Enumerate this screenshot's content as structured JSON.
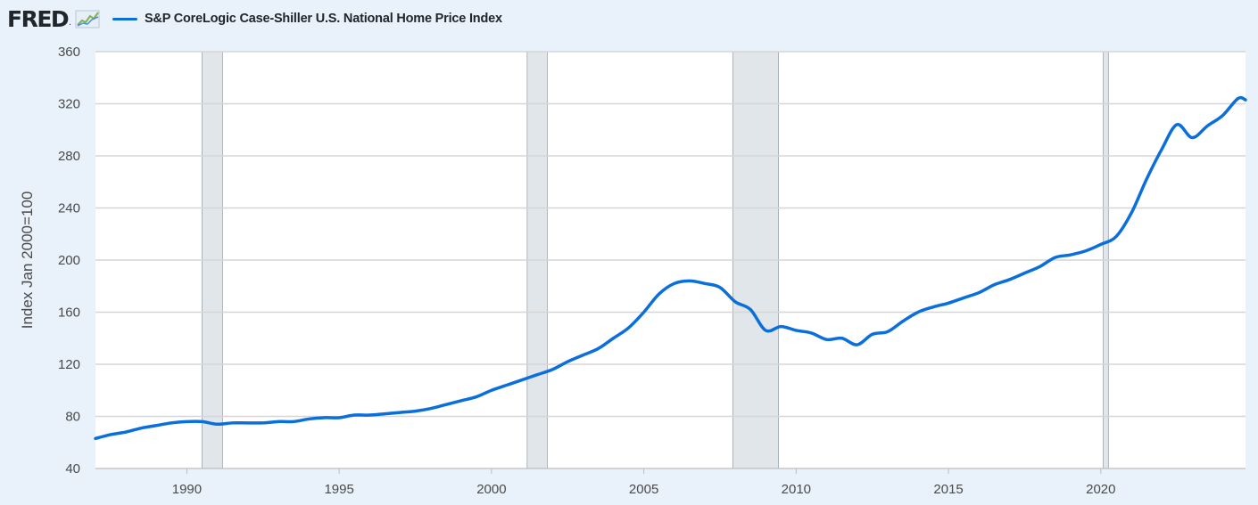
{
  "header": {
    "logo_text": "FRED",
    "logo_mark": ".",
    "icon": "line-graph-icon"
  },
  "colors": {
    "series": "#0a6fdb",
    "recession": "#e1e6eb",
    "grid": "#d6d6d6",
    "background": "#e9f2fa",
    "plot_background": "#ffffff"
  },
  "chart_data": {
    "type": "line",
    "title": "",
    "xlabel": "",
    "ylabel": "Index Jan 2000=100",
    "xlim": [
      1987.0,
      2024.75
    ],
    "ylim": [
      40,
      360
    ],
    "yticks": [
      40,
      80,
      120,
      160,
      200,
      240,
      280,
      320,
      360
    ],
    "xticks": [
      1990,
      1995,
      2000,
      2005,
      2010,
      2015,
      2020
    ],
    "grid": true,
    "legend": "top-left",
    "recessions": [
      [
        1990.5,
        1991.17
      ],
      [
        2001.17,
        2001.83
      ],
      [
        2007.92,
        2009.42
      ],
      [
        2020.08,
        2020.25
      ]
    ],
    "series": [
      {
        "name": "S&P CoreLogic Case-Shiller U.S. National Home Price Index",
        "x": [
          1987.0,
          1987.5,
          1988.0,
          1988.5,
          1989.0,
          1989.5,
          1990.0,
          1990.5,
          1991.0,
          1991.5,
          1992.0,
          1992.5,
          1993.0,
          1993.5,
          1994.0,
          1994.5,
          1995.0,
          1995.5,
          1996.0,
          1996.5,
          1997.0,
          1997.5,
          1998.0,
          1998.5,
          1999.0,
          1999.5,
          2000.0,
          2000.5,
          2001.0,
          2001.5,
          2002.0,
          2002.5,
          2003.0,
          2003.5,
          2004.0,
          2004.5,
          2005.0,
          2005.5,
          2006.0,
          2006.5,
          2007.0,
          2007.5,
          2008.0,
          2008.5,
          2009.0,
          2009.5,
          2010.0,
          2010.5,
          2011.0,
          2011.5,
          2012.0,
          2012.5,
          2013.0,
          2013.5,
          2014.0,
          2014.5,
          2015.0,
          2015.5,
          2016.0,
          2016.5,
          2017.0,
          2017.5,
          2018.0,
          2018.5,
          2019.0,
          2019.5,
          2020.0,
          2020.5,
          2021.0,
          2021.5,
          2022.0,
          2022.5,
          2023.0,
          2023.5,
          2024.0,
          2024.5,
          2024.75
        ],
        "values": [
          63,
          66,
          68,
          71,
          73,
          75,
          76,
          76,
          74,
          75,
          75,
          75,
          76,
          76,
          78,
          79,
          79,
          81,
          81,
          82,
          83,
          84,
          86,
          89,
          92,
          95,
          100,
          104,
          108,
          112,
          116,
          122,
          127,
          132,
          140,
          148,
          160,
          174,
          182,
          184,
          182,
          179,
          168,
          162,
          146,
          149,
          146,
          144,
          139,
          140,
          135,
          143,
          145,
          153,
          160,
          164,
          167,
          171,
          175,
          181,
          185,
          190,
          195,
          202,
          204,
          207,
          212,
          218,
          236,
          262,
          285,
          304,
          294,
          303,
          311,
          324,
          323
        ]
      }
    ]
  }
}
